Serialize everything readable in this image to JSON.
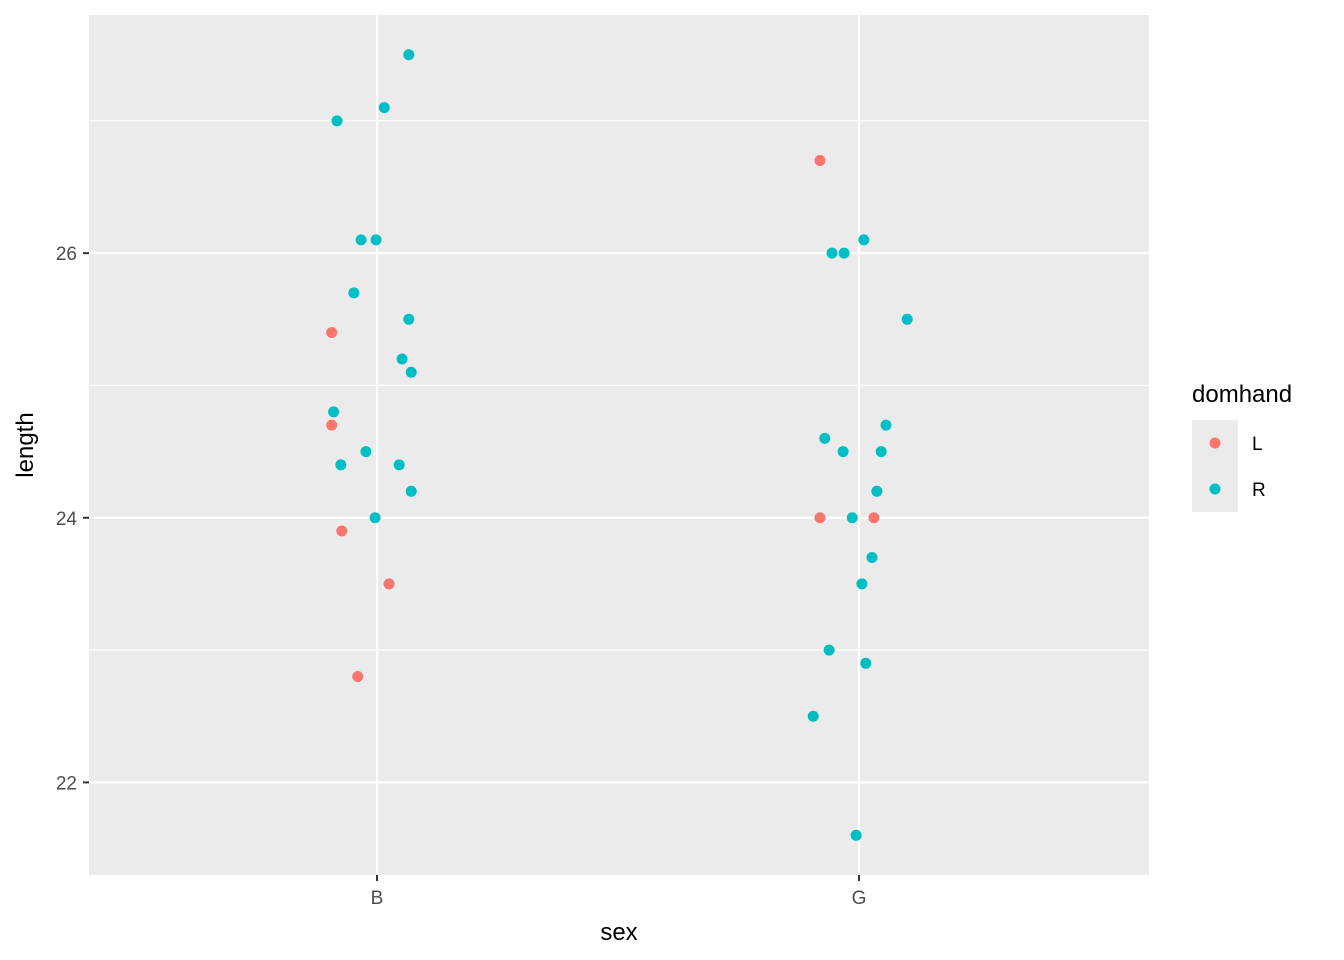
{
  "chart_data": {
    "type": "scatter",
    "title": "",
    "xlabel": "sex",
    "ylabel": "length",
    "categories": [
      "B",
      "G"
    ],
    "ylim": [
      21.3,
      27.8
    ],
    "yticks": [
      22,
      24,
      26
    ],
    "grid": true,
    "legend": {
      "title": "domhand",
      "placement": "right"
    },
    "series": [
      {
        "name": "L",
        "color": "#F8766D",
        "points": [
          {
            "x": "B",
            "jitter": -0.094,
            "y": 25.4
          },
          {
            "x": "B",
            "jitter": -0.094,
            "y": 24.7
          },
          {
            "x": "B",
            "jitter": -0.073,
            "y": 23.9
          },
          {
            "x": "B",
            "jitter": 0.025,
            "y": 23.5
          },
          {
            "x": "B",
            "jitter": -0.04,
            "y": 22.8
          },
          {
            "x": "G",
            "jitter": -0.081,
            "y": 26.7
          },
          {
            "x": "G",
            "jitter": -0.081,
            "y": 24.0
          },
          {
            "x": "G",
            "jitter": 0.031,
            "y": 24.0
          }
        ]
      },
      {
        "name": "R",
        "color": "#00BFC4",
        "points": [
          {
            "x": "B",
            "jitter": 0.066,
            "y": 27.5
          },
          {
            "x": "B",
            "jitter": -0.083,
            "y": 27.0
          },
          {
            "x": "B",
            "jitter": 0.015,
            "y": 27.1
          },
          {
            "x": "B",
            "jitter": -0.033,
            "y": 26.1
          },
          {
            "x": "B",
            "jitter": -0.002,
            "y": 26.1
          },
          {
            "x": "B",
            "jitter": -0.048,
            "y": 25.7
          },
          {
            "x": "B",
            "jitter": 0.066,
            "y": 25.5
          },
          {
            "x": "B",
            "jitter": 0.052,
            "y": 25.2
          },
          {
            "x": "B",
            "jitter": 0.071,
            "y": 25.1
          },
          {
            "x": "B",
            "jitter": -0.09,
            "y": 24.8
          },
          {
            "x": "B",
            "jitter": -0.023,
            "y": 24.5
          },
          {
            "x": "B",
            "jitter": -0.075,
            "y": 24.4
          },
          {
            "x": "B",
            "jitter": 0.046,
            "y": 24.4
          },
          {
            "x": "B",
            "jitter": 0.071,
            "y": 24.2
          },
          {
            "x": "B",
            "jitter": -0.004,
            "y": 24.0
          },
          {
            "x": "G",
            "jitter": 0.01,
            "y": 26.1
          },
          {
            "x": "G",
            "jitter": -0.031,
            "y": 26.0
          },
          {
            "x": "G",
            "jitter": -0.056,
            "y": 26.0
          },
          {
            "x": "G",
            "jitter": 0.1,
            "y": 25.5
          },
          {
            "x": "G",
            "jitter": 0.056,
            "y": 24.7
          },
          {
            "x": "G",
            "jitter": -0.071,
            "y": 24.6
          },
          {
            "x": "G",
            "jitter": 0.046,
            "y": 24.5
          },
          {
            "x": "G",
            "jitter": -0.033,
            "y": 24.5
          },
          {
            "x": "G",
            "jitter": 0.037,
            "y": 24.2
          },
          {
            "x": "G",
            "jitter": -0.014,
            "y": 24.0
          },
          {
            "x": "G",
            "jitter": 0.027,
            "y": 23.7
          },
          {
            "x": "G",
            "jitter": 0.006,
            "y": 23.5
          },
          {
            "x": "G",
            "jitter": -0.062,
            "y": 23.0
          },
          {
            "x": "G",
            "jitter": 0.014,
            "y": 22.9
          },
          {
            "x": "G",
            "jitter": -0.095,
            "y": 22.5
          },
          {
            "x": "G",
            "jitter": -0.006,
            "y": 21.6
          }
        ]
      }
    ]
  }
}
